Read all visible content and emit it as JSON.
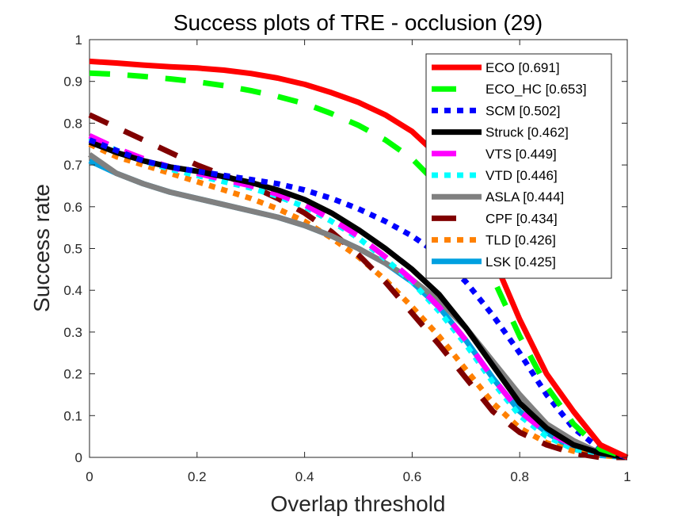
{
  "chart_data": {
    "type": "line",
    "title": "Success plots of TRE - occlusion (29)",
    "xlabel": "Overlap threshold",
    "ylabel": "Success rate",
    "xlim": [
      0,
      1
    ],
    "ylim": [
      0,
      1
    ],
    "xticks": [
      0,
      0.2,
      0.4,
      0.6,
      0.8,
      1
    ],
    "xtick_labels": [
      "0",
      "0.2",
      "0.4",
      "0.6",
      "0.8",
      "1"
    ],
    "yticks": [
      0,
      0.1,
      0.2,
      0.3,
      0.4,
      0.5,
      0.6,
      0.7,
      0.8,
      0.9,
      1
    ],
    "ytick_labels": [
      "0",
      "0.1",
      "0.2",
      "0.3",
      "0.4",
      "0.5",
      "0.6",
      "0.7",
      "0.8",
      "0.9",
      "1"
    ],
    "grid": false,
    "legend_position": "top-right",
    "x": [
      0,
      0.05,
      0.1,
      0.15,
      0.2,
      0.25,
      0.3,
      0.35,
      0.4,
      0.45,
      0.5,
      0.55,
      0.6,
      0.65,
      0.7,
      0.75,
      0.8,
      0.85,
      0.9,
      0.95,
      1
    ],
    "series": [
      {
        "name": "ECO",
        "legend": "ECO [0.691]",
        "auc": 0.691,
        "color": "#ff0000",
        "style": "solid",
        "values": [
          0.948,
          0.944,
          0.939,
          0.935,
          0.932,
          0.927,
          0.919,
          0.908,
          0.893,
          0.873,
          0.85,
          0.82,
          0.78,
          0.72,
          0.62,
          0.48,
          0.33,
          0.2,
          0.11,
          0.03,
          0.0
        ]
      },
      {
        "name": "ECO_HC",
        "legend": "ECO_HC [0.653]",
        "auc": 0.653,
        "color": "#00ff00",
        "style": "dashed",
        "values": [
          0.92,
          0.917,
          0.912,
          0.906,
          0.899,
          0.89,
          0.878,
          0.864,
          0.847,
          0.823,
          0.795,
          0.76,
          0.715,
          0.65,
          0.56,
          0.43,
          0.29,
          0.17,
          0.08,
          0.02,
          0.0
        ]
      },
      {
        "name": "SCM",
        "legend": "SCM [0.502]",
        "auc": 0.502,
        "color": "#0000ff",
        "style": "dotted",
        "values": [
          0.76,
          0.735,
          0.71,
          0.695,
          0.685,
          0.675,
          0.665,
          0.655,
          0.64,
          0.62,
          0.595,
          0.565,
          0.53,
          0.485,
          0.42,
          0.34,
          0.25,
          0.15,
          0.07,
          0.02,
          0.0
        ]
      },
      {
        "name": "Struck",
        "legend": "Struck [0.462]",
        "auc": 0.462,
        "color": "#000000",
        "style": "solid",
        "values": [
          0.755,
          0.73,
          0.71,
          0.695,
          0.685,
          0.672,
          0.658,
          0.64,
          0.617,
          0.585,
          0.545,
          0.5,
          0.45,
          0.39,
          0.31,
          0.22,
          0.13,
          0.07,
          0.03,
          0.01,
          0.0
        ]
      },
      {
        "name": "VTS",
        "legend": "VTS [0.449]",
        "auc": 0.449,
        "color": "#ff00ff",
        "style": "dashed",
        "values": [
          0.77,
          0.74,
          0.715,
          0.695,
          0.68,
          0.665,
          0.65,
          0.63,
          0.605,
          0.57,
          0.53,
          0.48,
          0.425,
          0.36,
          0.28,
          0.19,
          0.11,
          0.06,
          0.03,
          0.01,
          0.0
        ]
      },
      {
        "name": "VTD",
        "legend": "VTD [0.446]",
        "auc": 0.446,
        "color": "#00ffff",
        "style": "dotted",
        "values": [
          0.765,
          0.735,
          0.71,
          0.69,
          0.675,
          0.66,
          0.645,
          0.625,
          0.6,
          0.565,
          0.525,
          0.475,
          0.42,
          0.35,
          0.27,
          0.18,
          0.1,
          0.05,
          0.02,
          0.01,
          0.0
        ]
      },
      {
        "name": "ASLA",
        "legend": "ASLA [0.444]",
        "auc": 0.444,
        "color": "#808080",
        "style": "solid",
        "values": [
          0.725,
          0.68,
          0.655,
          0.635,
          0.62,
          0.605,
          0.59,
          0.575,
          0.555,
          0.53,
          0.5,
          0.465,
          0.425,
          0.375,
          0.31,
          0.23,
          0.15,
          0.08,
          0.04,
          0.01,
          0.0
        ]
      },
      {
        "name": "CPF",
        "legend": "CPF [0.434]",
        "auc": 0.434,
        "color": "#800000",
        "style": "dashed",
        "values": [
          0.82,
          0.79,
          0.76,
          0.73,
          0.7,
          0.675,
          0.65,
          0.62,
          0.585,
          0.54,
          0.485,
          0.42,
          0.345,
          0.27,
          0.19,
          0.11,
          0.06,
          0.03,
          0.01,
          0.0,
          0.0
        ]
      },
      {
        "name": "TLD",
        "legend": "TLD [0.426]",
        "auc": 0.426,
        "color": "#ff8000",
        "style": "dotted",
        "values": [
          0.75,
          0.72,
          0.7,
          0.68,
          0.66,
          0.64,
          0.62,
          0.595,
          0.565,
          0.525,
          0.48,
          0.425,
          0.36,
          0.29,
          0.21,
          0.13,
          0.07,
          0.035,
          0.015,
          0.005,
          0.0
        ]
      },
      {
        "name": "LSK",
        "legend": "LSK [0.425]",
        "auc": 0.425,
        "color": "#00a0e0",
        "style": "solid",
        "values": [
          0.71,
          0.68,
          0.655,
          0.635,
          0.62,
          0.605,
          0.59,
          0.575,
          0.555,
          0.53,
          0.5,
          0.465,
          0.42,
          0.36,
          0.28,
          0.19,
          0.11,
          0.06,
          0.02,
          0.005,
          0.0
        ]
      }
    ]
  }
}
